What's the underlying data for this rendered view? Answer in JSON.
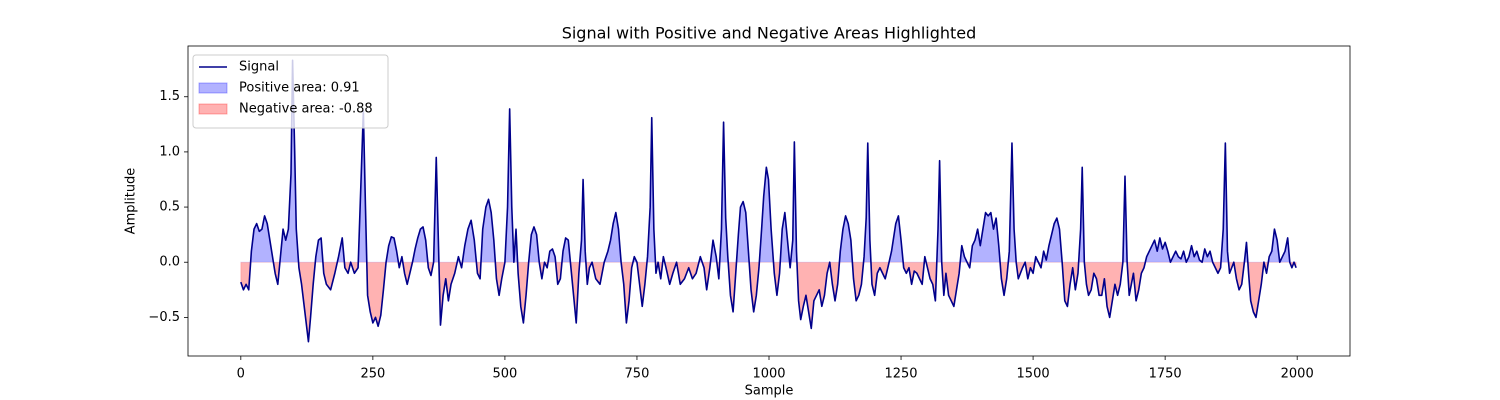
{
  "chart_data": {
    "type": "line",
    "title": "Signal with Positive and Negative Areas Highlighted",
    "x_label": "Sample",
    "y_label": "Amplitude",
    "xlim": [
      -100,
      2100
    ],
    "ylim": [
      -0.85,
      1.96
    ],
    "xticks": [
      0,
      250,
      500,
      750,
      1000,
      1250,
      1500,
      1750,
      2000
    ],
    "yticks": [
      {
        "value": -0.5,
        "label": "−0.5"
      },
      {
        "value": 0.0,
        "label": "0.0"
      },
      0.5,
      {
        "value": 1.0,
        "label": "1.0"
      },
      1.5
    ],
    "legend": "upper left",
    "x": [
      0,
      5,
      10,
      15,
      20,
      25,
      30,
      35,
      40,
      45,
      50,
      55,
      60,
      65,
      70,
      75,
      80,
      85,
      90,
      95,
      98,
      102,
      105,
      110,
      115,
      120,
      125,
      128,
      132,
      137,
      142,
      147,
      152,
      157,
      162,
      170,
      178,
      185,
      192,
      197,
      203,
      208,
      215,
      222,
      228,
      232,
      236,
      240,
      245,
      250,
      255,
      260,
      265,
      270,
      275,
      280,
      285,
      290,
      295,
      300,
      305,
      310,
      315,
      320,
      325,
      330,
      335,
      340,
      345,
      350,
      355,
      360,
      365,
      370,
      374,
      378,
      383,
      388,
      393,
      398,
      405,
      412,
      418,
      424,
      430,
      436,
      442,
      448,
      453,
      458,
      464,
      469,
      474,
      479,
      484,
      489,
      494,
      500,
      505,
      509,
      513,
      517,
      521,
      525,
      530,
      535,
      540,
      545,
      550,
      555,
      560,
      565,
      570,
      575,
      580,
      585,
      590,
      595,
      600,
      605,
      610,
      615,
      620,
      625,
      630,
      635,
      640,
      645,
      648,
      652,
      656,
      660,
      665,
      672,
      680,
      688,
      695,
      700,
      705,
      710,
      715,
      720,
      725,
      730,
      735,
      740,
      745,
      750,
      755,
      760,
      765,
      770,
      775,
      778,
      782,
      786,
      790,
      795,
      800,
      805,
      812,
      818,
      825,
      832,
      840,
      848,
      855,
      862,
      870,
      877,
      882,
      888,
      894,
      900,
      905,
      910,
      914,
      918,
      922,
      927,
      932,
      937,
      942,
      946,
      951,
      956,
      961,
      966,
      971,
      976,
      981,
      986,
      990,
      995,
      999,
      1004,
      1010,
      1015,
      1020,
      1025,
      1030,
      1035,
      1040,
      1045,
      1048,
      1052,
      1056,
      1060,
      1065,
      1070,
      1075,
      1080,
      1085,
      1090,
      1095,
      1100,
      1105,
      1110,
      1115,
      1120,
      1125,
      1130,
      1135,
      1140,
      1145,
      1150,
      1155,
      1160,
      1165,
      1170,
      1175,
      1180,
      1184,
      1187,
      1191,
      1195,
      1200,
      1205,
      1210,
      1215,
      1220,
      1225,
      1232,
      1240,
      1245,
      1250,
      1255,
      1260,
      1265,
      1270,
      1275,
      1280,
      1285,
      1290,
      1295,
      1300,
      1305,
      1310,
      1315,
      1320,
      1323,
      1327,
      1331,
      1335,
      1340,
      1345,
      1350,
      1355,
      1360,
      1365,
      1370,
      1375,
      1380,
      1385,
      1390,
      1395,
      1400,
      1405,
      1410,
      1415,
      1420,
      1425,
      1430,
      1435,
      1440,
      1445,
      1450,
      1455,
      1460,
      1464,
      1468,
      1472,
      1476,
      1480,
      1485,
      1490,
      1495,
      1500,
      1505,
      1510,
      1515,
      1520,
      1525,
      1530,
      1535,
      1540,
      1545,
      1550,
      1555,
      1560,
      1565,
      1570,
      1575,
      1580,
      1585,
      1590,
      1593,
      1597,
      1601,
      1605,
      1610,
      1615,
      1620,
      1625,
      1630,
      1635,
      1640,
      1645,
      1650,
      1655,
      1660,
      1665,
      1670,
      1674,
      1678,
      1682,
      1686,
      1690,
      1695,
      1700,
      1705,
      1710,
      1715,
      1720,
      1725,
      1730,
      1735,
      1740,
      1745,
      1750,
      1755,
      1760,
      1765,
      1770,
      1775,
      1780,
      1785,
      1790,
      1795,
      1800,
      1805,
      1810,
      1815,
      1820,
      1825,
      1830,
      1835,
      1840,
      1845,
      1850,
      1855,
      1860,
      1864,
      1868,
      1872,
      1876,
      1880,
      1885,
      1890,
      1895,
      1900,
      1904,
      1908,
      1912,
      1917,
      1922,
      1927,
      1932,
      1937,
      1942,
      1947,
      1952,
      1957,
      1962,
      1967,
      1972,
      1977,
      1982,
      1986,
      1990,
      1994,
      1998
    ],
    "series": [
      {
        "name": "Signal",
        "color": "#00008b",
        "values": [
          -0.18,
          -0.25,
          -0.2,
          -0.25,
          0.1,
          0.3,
          0.35,
          0.28,
          0.3,
          0.42,
          0.35,
          0.2,
          0.05,
          -0.1,
          -0.2,
          0.05,
          0.3,
          0.2,
          0.3,
          0.8,
          1.83,
          1.0,
          0.3,
          -0.05,
          -0.2,
          -0.4,
          -0.6,
          -0.72,
          -0.5,
          -0.2,
          0.05,
          0.2,
          0.22,
          -0.1,
          -0.2,
          -0.25,
          -0.1,
          0.05,
          0.22,
          -0.05,
          -0.1,
          0.0,
          -0.1,
          -0.05,
          0.8,
          1.37,
          0.5,
          -0.3,
          -0.45,
          -0.55,
          -0.5,
          -0.58,
          -0.48,
          -0.25,
          0.0,
          0.15,
          0.23,
          0.22,
          0.1,
          -0.05,
          0.05,
          -0.1,
          -0.2,
          -0.1,
          0.0,
          0.12,
          0.22,
          0.3,
          0.32,
          0.2,
          -0.05,
          -0.12,
          0.0,
          0.95,
          0.2,
          -0.57,
          -0.3,
          -0.15,
          -0.35,
          -0.2,
          -0.1,
          0.05,
          -0.05,
          0.15,
          0.3,
          0.38,
          0.2,
          -0.1,
          -0.15,
          0.3,
          0.5,
          0.57,
          0.45,
          0.2,
          -0.15,
          -0.3,
          -0.15,
          0.0,
          0.5,
          1.39,
          0.5,
          0.0,
          0.3,
          -0.1,
          -0.4,
          -0.55,
          -0.3,
          0.0,
          0.25,
          0.32,
          0.25,
          0.0,
          -0.15,
          0.0,
          -0.05,
          0.1,
          0.12,
          0.05,
          -0.2,
          -0.15,
          0.1,
          0.22,
          0.2,
          -0.05,
          -0.3,
          -0.55,
          -0.1,
          0.2,
          0.75,
          0.1,
          -0.2,
          -0.05,
          0.0,
          -0.15,
          -0.2,
          0.0,
          0.1,
          0.2,
          0.35,
          0.45,
          0.3,
          0.0,
          -0.2,
          -0.55,
          -0.35,
          -0.05,
          0.05,
          0.0,
          -0.2,
          -0.4,
          -0.2,
          0.05,
          0.5,
          1.31,
          0.3,
          -0.1,
          0.0,
          -0.15,
          0.05,
          -0.05,
          -0.2,
          -0.1,
          0.0,
          -0.2,
          -0.15,
          -0.05,
          -0.15,
          -0.1,
          0.05,
          -0.05,
          -0.25,
          -0.05,
          0.2,
          0.05,
          -0.15,
          0.3,
          1.27,
          0.4,
          0.05,
          -0.3,
          -0.45,
          -0.1,
          0.25,
          0.5,
          0.55,
          0.45,
          0.1,
          -0.25,
          -0.45,
          -0.3,
          -0.05,
          0.3,
          0.6,
          0.86,
          0.75,
          0.3,
          -0.1,
          -0.3,
          -0.1,
          0.3,
          0.45,
          0.2,
          -0.05,
          0.2,
          1.09,
          0.1,
          -0.35,
          -0.52,
          -0.4,
          -0.3,
          -0.45,
          -0.6,
          -0.35,
          -0.3,
          -0.25,
          -0.4,
          -0.3,
          -0.1,
          0.0,
          -0.2,
          -0.35,
          -0.2,
          0.1,
          0.3,
          0.42,
          0.35,
          0.2,
          -0.15,
          -0.35,
          -0.3,
          -0.2,
          0.05,
          0.4,
          1.08,
          0.2,
          -0.2,
          -0.3,
          -0.1,
          -0.05,
          -0.1,
          -0.15,
          -0.05,
          0.1,
          0.35,
          0.42,
          0.2,
          -0.05,
          -0.1,
          -0.05,
          -0.2,
          -0.08,
          -0.1,
          -0.15,
          -0.2,
          0.05,
          -0.05,
          -0.15,
          -0.2,
          -0.35,
          0.3,
          0.92,
          0.0,
          -0.3,
          -0.1,
          -0.3,
          -0.35,
          -0.4,
          -0.25,
          -0.1,
          0.15,
          0.05,
          0.0,
          -0.05,
          0.15,
          0.2,
          0.3,
          0.15,
          0.3,
          0.45,
          0.42,
          0.45,
          0.3,
          0.4,
          0.15,
          -0.15,
          -0.3,
          -0.15,
          0.1,
          1.08,
          0.3,
          0.0,
          -0.15,
          -0.1,
          -0.05,
          0.0,
          -0.15,
          -0.05,
          -0.1,
          0.05,
          0.0,
          -0.05,
          0.1,
          0.02,
          0.15,
          0.25,
          0.35,
          0.4,
          0.3,
          0.0,
          -0.35,
          -0.4,
          -0.2,
          -0.05,
          -0.25,
          -0.1,
          0.3,
          0.86,
          0.0,
          -0.2,
          -0.3,
          -0.25,
          -0.1,
          -0.15,
          -0.3,
          -0.3,
          -0.15,
          -0.4,
          -0.5,
          -0.35,
          -0.2,
          -0.3,
          -0.2,
          0.0,
          0.78,
          0.0,
          -0.3,
          -0.2,
          -0.1,
          -0.35,
          -0.25,
          -0.1,
          -0.05,
          0.05,
          0.1,
          0.15,
          0.2,
          0.1,
          0.22,
          0.12,
          0.18,
          0.1,
          0.0,
          0.05,
          0.1,
          0.05,
          0.03,
          0.1,
          0.0,
          0.05,
          0.15,
          0.05,
          0.1,
          0.02,
          0.0,
          0.12,
          0.05,
          0.1,
          0.0,
          -0.05,
          -0.1,
          -0.05,
          0.3,
          1.08,
          0.1,
          -0.1,
          -0.05,
          0.0,
          -0.15,
          -0.25,
          -0.2,
          0.0,
          0.18,
          -0.1,
          -0.35,
          -0.45,
          -0.5,
          -0.35,
          -0.2,
          0.0,
          -0.1,
          0.05,
          0.1,
          0.3,
          0.2,
          0.0,
          0.05,
          0.1,
          0.22,
          0.0,
          -0.05,
          0.0,
          -0.05
        ]
      }
    ],
    "fills": [
      {
        "name": "Positive area: 0.91",
        "color": "#0000ff",
        "alpha": 0.3,
        "side": "above"
      },
      {
        "name": "Negative area: -0.88",
        "color": "#ff0000",
        "alpha": 0.3,
        "side": "below"
      }
    ]
  }
}
